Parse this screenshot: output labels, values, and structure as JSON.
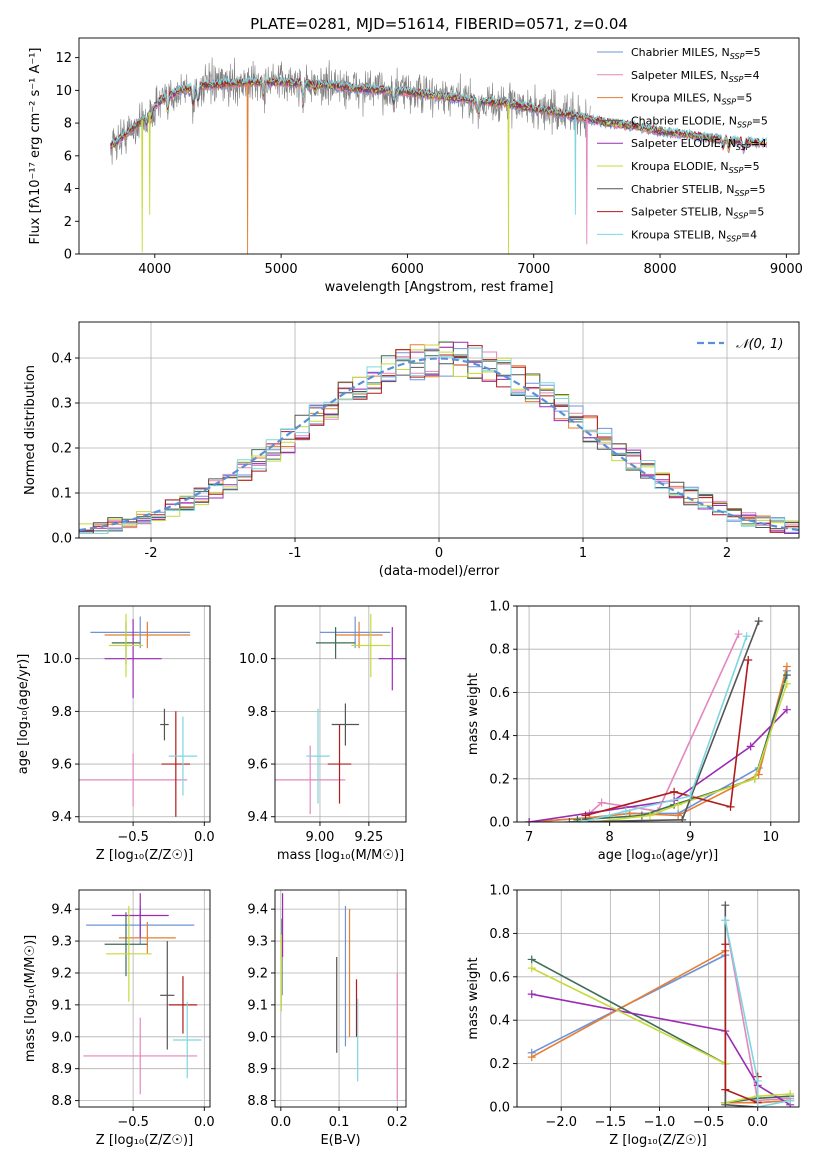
{
  "figure_title": "PLATE=0281, MJD=51614, FIBERID=0571, z=0.04",
  "colors": {
    "chabrier_miles": "#6f93d8",
    "salpeter_miles": "#e387be",
    "kroupa_miles": "#e57e32",
    "chabrier_elodie": "#3c6e55",
    "salpeter_elodie": "#9b2bb5",
    "kroupa_elodie": "#c6da3c",
    "chabrier_stelib": "#555555",
    "salpeter_stelib": "#b01b1b",
    "kroupa_stelib": "#7ed6e0",
    "data": "#7f7f7f",
    "normal": "#5b8fd6",
    "grid": "#b0b0b0"
  },
  "legend_entries": [
    {
      "key": "chabrier_miles",
      "label": "Chabrier MILES, N",
      "sub": "SSP",
      "suffix": "=5"
    },
    {
      "key": "salpeter_miles",
      "label": "Salpeter MILES, N",
      "sub": "SSP",
      "suffix": "=4"
    },
    {
      "key": "kroupa_miles",
      "label": "Kroupa MILES, N",
      "sub": "SSP",
      "suffix": "=5"
    },
    {
      "key": "chabrier_elodie",
      "label": "Chabrier ELODIE, N",
      "sub": "SSP",
      "suffix": "=5"
    },
    {
      "key": "salpeter_elodie",
      "label": "Salpeter ELODIE, N",
      "sub": "SSP",
      "suffix": "=4"
    },
    {
      "key": "kroupa_elodie",
      "label": "Kroupa ELODIE, N",
      "sub": "SSP",
      "suffix": "=5"
    },
    {
      "key": "chabrier_stelib",
      "label": "Chabrier STELIB, N",
      "sub": "SSP",
      "suffix": "=5"
    },
    {
      "key": "salpeter_stelib",
      "label": "Salpeter STELIB, N",
      "sub": "SSP",
      "suffix": "=5"
    },
    {
      "key": "kroupa_stelib",
      "label": "Kroupa STELIB, N",
      "sub": "SSP",
      "suffix": "=4"
    }
  ],
  "chart_data": [
    {
      "id": "spectrum",
      "type": "line",
      "xlabel": "wavelength [Angstrom, rest frame]",
      "ylabel": "Flux [fλ10⁻¹⁷ erg cm⁻² s⁻¹ A⁻¹]",
      "xlim": [
        3400,
        9100
      ],
      "ylim": [
        0,
        13.2
      ],
      "xticks": [
        4000,
        5000,
        6000,
        7000,
        8000,
        9000
      ],
      "yticks": [
        0,
        2,
        4,
        6,
        8,
        10,
        12
      ],
      "continuum": [
        [
          3650,
          6.6
        ],
        [
          3750,
          7.2
        ],
        [
          3850,
          7.8
        ],
        [
          3950,
          8.6
        ],
        [
          4050,
          9.4
        ],
        [
          4200,
          10.0
        ],
        [
          4400,
          10.3
        ],
        [
          4600,
          10.4
        ],
        [
          4800,
          10.5
        ],
        [
          5000,
          10.5
        ],
        [
          5200,
          10.4
        ],
        [
          5400,
          10.3
        ],
        [
          5600,
          10.1
        ],
        [
          5800,
          10.0
        ],
        [
          6000,
          9.9
        ],
        [
          6200,
          9.7
        ],
        [
          6400,
          9.5
        ],
        [
          6600,
          9.3
        ],
        [
          6800,
          9.2
        ],
        [
          7000,
          8.9
        ],
        [
          7200,
          8.6
        ],
        [
          7400,
          8.3
        ],
        [
          7600,
          8.0
        ],
        [
          7800,
          7.8
        ],
        [
          8000,
          7.5
        ],
        [
          8200,
          7.3
        ],
        [
          8400,
          7.1
        ],
        [
          8600,
          6.9
        ],
        [
          8800,
          6.8
        ]
      ],
      "absorption_lines": [
        [
          3934,
          0.6
        ],
        [
          3969,
          0.7
        ],
        [
          4102,
          0.9
        ],
        [
          4304,
          1.2
        ],
        [
          4341,
          0.9
        ],
        [
          4861,
          0.9
        ],
        [
          5175,
          1.0
        ],
        [
          5269,
          0.5
        ],
        [
          5890,
          0.8
        ],
        [
          6563,
          0.9
        ],
        [
          8498,
          0.5
        ],
        [
          8542,
          0.6
        ],
        [
          8662,
          0.5
        ]
      ],
      "glitches": [
        {
          "x": 3900,
          "y": 0.1,
          "series": "kroupa_elodie"
        },
        {
          "x": 3960,
          "y": 2.4,
          "series": "kroupa_elodie"
        },
        {
          "x": 4735,
          "y": 0,
          "series": "kroupa_miles"
        },
        {
          "x": 6800,
          "y": 0,
          "series": "kroupa_elodie"
        },
        {
          "x": 7330,
          "y": 2.4,
          "series": "kroupa_stelib"
        },
        {
          "x": 7420,
          "y": 0.6,
          "series": "salpeter_miles"
        }
      ],
      "data_range": [
        3650,
        7450
      ],
      "models_range": [
        3650,
        8850
      ],
      "noise_amplitude": 1.2
    },
    {
      "id": "residuals",
      "type": "step-histogram",
      "xlabel": "(data-model)/error",
      "ylabel": "Normed distribution",
      "xlim": [
        -2.5,
        2.5
      ],
      "ylim": [
        0,
        0.48
      ],
      "xticks": [
        -2,
        -1,
        0,
        1,
        2
      ],
      "yticks": [
        0.0,
        0.1,
        0.2,
        0.3,
        0.4
      ],
      "bin_width": 0.1,
      "bin_start": -2.5,
      "normal_label": "𝒩(0, 1)",
      "perturbation_amplitude": 0.04
    },
    {
      "id": "age_vs_Z",
      "type": "errorbar",
      "xlabel": "Z [log₁₀(Z/Z☉)]",
      "ylabel": "age  [log₁₀(age/yr)]",
      "xlim": [
        -0.88,
        0.04
      ],
      "ylim": [
        9.38,
        10.2
      ],
      "xticks": [
        -0.5,
        0.0
      ],
      "xticklabels": [
        "−0.5",
        "0.0"
      ],
      "yticks": [
        9.4,
        9.6,
        9.8,
        10.0
      ],
      "yticklabels": [
        "9.4",
        "9.6",
        "9.8",
        "10.0"
      ],
      "points": [
        {
          "s": "chabrier_miles",
          "x": -0.45,
          "xe": 0.35,
          "y": 10.1,
          "ye": 0.06
        },
        {
          "s": "salpeter_miles",
          "x": -0.5,
          "xe": 0.38,
          "y": 9.54,
          "ye": 0.1
        },
        {
          "s": "kroupa_miles",
          "x": -0.4,
          "xe": 0.3,
          "y": 10.09,
          "ye": 0.05
        },
        {
          "s": "chabrier_elodie",
          "x": -0.55,
          "xe": 0.1,
          "y": 10.06,
          "ye": 0.08
        },
        {
          "s": "salpeter_elodie",
          "x": -0.5,
          "xe": 0.2,
          "y": 10.0,
          "ye": 0.15
        },
        {
          "s": "kroupa_elodie",
          "x": -0.55,
          "xe": 0.12,
          "y": 10.05,
          "ye": 0.12
        },
        {
          "s": "chabrier_stelib",
          "x": -0.28,
          "xe": 0.03,
          "y": 9.75,
          "ye": 0.06
        },
        {
          "s": "salpeter_stelib",
          "x": -0.2,
          "xe": 0.1,
          "y": 9.6,
          "ye": 0.2
        },
        {
          "s": "kroupa_stelib",
          "x": -0.15,
          "xe": 0.1,
          "y": 9.63,
          "ye": 0.15
        }
      ]
    },
    {
      "id": "age_vs_mass",
      "type": "errorbar",
      "xlabel": "mass [log₁₀(M/M☉)]",
      "ylabel": "",
      "xlim": [
        8.77,
        9.44
      ],
      "ylim": [
        9.38,
        10.2
      ],
      "xticks": [
        9.0,
        9.25
      ],
      "xticklabels": [
        "9.00",
        "9.25"
      ],
      "yticks": [
        9.4,
        9.6,
        9.8,
        10.0
      ],
      "yticklabels": [
        "9.4",
        "9.6",
        "9.8",
        "10.0"
      ],
      "points": [
        {
          "s": "chabrier_miles",
          "x": 9.18,
          "xe": 0.18,
          "y": 10.1,
          "ye": 0.06
        },
        {
          "s": "salpeter_miles",
          "x": 8.95,
          "xe": 0.18,
          "y": 9.54,
          "ye": 0.13
        },
        {
          "s": "kroupa_miles",
          "x": 9.2,
          "xe": 0.12,
          "y": 10.09,
          "ye": 0.05
        },
        {
          "s": "chabrier_elodie",
          "x": 9.08,
          "xe": 0.1,
          "y": 10.06,
          "ye": 0.06
        },
        {
          "s": "salpeter_elodie",
          "x": 9.37,
          "xe": 0.07,
          "y": 10.0,
          "ye": 0.12
        },
        {
          "s": "kroupa_elodie",
          "x": 9.26,
          "xe": 0.1,
          "y": 10.05,
          "ye": 0.12
        },
        {
          "s": "chabrier_stelib",
          "x": 9.13,
          "xe": 0.07,
          "y": 9.75,
          "ye": 0.08
        },
        {
          "s": "salpeter_stelib",
          "x": 9.1,
          "xe": 0.06,
          "y": 9.6,
          "ye": 0.15
        },
        {
          "s": "kroupa_stelib",
          "x": 8.99,
          "xe": 0.06,
          "y": 9.63,
          "ye": 0.18
        }
      ]
    },
    {
      "id": "mass_weight_vs_age",
      "type": "line",
      "xlabel": "age  [log₁₀(age/yr)]",
      "ylabel": "mass weight",
      "xlim": [
        6.85,
        10.35
      ],
      "ylim": [
        0,
        1.0
      ],
      "xticks": [
        7,
        8,
        9,
        10
      ],
      "yticks": [
        0.0,
        0.2,
        0.4,
        0.6,
        0.8,
        1.0
      ],
      "series": [
        {
          "s": "chabrier_miles",
          "x": [
            7.0,
            7.75,
            8.25,
            8.85,
            9.85,
            10.2
          ],
          "y": [
            0.0,
            0.02,
            0.04,
            0.04,
            0.25,
            0.7
          ]
        },
        {
          "s": "salpeter_miles",
          "x": [
            7.75,
            7.9,
            8.6,
            9.6
          ],
          "y": [
            0.04,
            0.09,
            0.05,
            0.87
          ]
        },
        {
          "s": "kroupa_miles",
          "x": [
            7.0,
            7.75,
            8.25,
            8.85,
            9.85,
            10.2
          ],
          "y": [
            0.0,
            0.02,
            0.04,
            0.03,
            0.22,
            0.72
          ]
        },
        {
          "s": "chabrier_elodie",
          "x": [
            7.6,
            8.4,
            8.8,
            9.8,
            10.2
          ],
          "y": [
            0.01,
            0.03,
            0.08,
            0.2,
            0.68
          ]
        },
        {
          "s": "salpeter_elodie",
          "x": [
            7.0,
            8.8,
            9.75,
            10.2
          ],
          "y": [
            0.0,
            0.1,
            0.35,
            0.52
          ]
        },
        {
          "s": "kroupa_elodie",
          "x": [
            7.8,
            8.5,
            8.85,
            9.8,
            10.2
          ],
          "y": [
            0.0,
            0.03,
            0.08,
            0.2,
            0.64
          ]
        },
        {
          "s": "chabrier_stelib",
          "x": [
            7.5,
            8.9,
            9.85
          ],
          "y": [
            0.0,
            0.01,
            0.93
          ]
        },
        {
          "s": "salpeter_stelib",
          "x": [
            7.7,
            8.8,
            9.5,
            9.72
          ],
          "y": [
            0.03,
            0.14,
            0.07,
            0.75
          ]
        },
        {
          "s": "kroupa_stelib",
          "x": [
            7.65,
            8.2,
            9.0,
            9.7
          ],
          "y": [
            0.0,
            0.05,
            0.12,
            0.86
          ]
        }
      ]
    },
    {
      "id": "mass_vs_Z",
      "type": "errorbar",
      "xlabel": "Z [log₁₀(Z/Z☉)]",
      "ylabel": "mass [log₁₀(M/M☉)]",
      "xlim": [
        -0.88,
        0.04
      ],
      "ylim": [
        8.78,
        9.46
      ],
      "xticks": [
        -0.5,
        0.0
      ],
      "xticklabels": [
        "−0.5",
        "0.0"
      ],
      "yticks": [
        8.8,
        8.9,
        9.0,
        9.1,
        9.2,
        9.3,
        9.4
      ],
      "yticklabels": [
        "8.8",
        "8.9",
        "9.0",
        "9.1",
        "9.2",
        "9.3",
        "9.4"
      ],
      "points": [
        {
          "s": "chabrier_miles",
          "x": -0.45,
          "xe": 0.38,
          "y": 9.35,
          "ye": 0.06
        },
        {
          "s": "salpeter_miles",
          "x": -0.45,
          "xe": 0.4,
          "y": 8.94,
          "ye": 0.12
        },
        {
          "s": "kroupa_miles",
          "x": -0.4,
          "xe": 0.2,
          "y": 9.31,
          "ye": 0.05
        },
        {
          "s": "chabrier_elodie",
          "x": -0.55,
          "xe": 0.15,
          "y": 9.29,
          "ye": 0.1
        },
        {
          "s": "salpeter_elodie",
          "x": -0.45,
          "xe": 0.2,
          "y": 9.38,
          "ye": 0.07
        },
        {
          "s": "kroupa_elodie",
          "x": -0.53,
          "xe": 0.16,
          "y": 9.26,
          "ye": 0.15
        },
        {
          "s": "chabrier_stelib",
          "x": -0.26,
          "xe": 0.05,
          "y": 9.13,
          "ye": 0.17
        },
        {
          "s": "salpeter_stelib",
          "x": -0.15,
          "xe": 0.1,
          "y": 9.1,
          "ye": 0.09
        },
        {
          "s": "kroupa_stelib",
          "x": -0.12,
          "xe": 0.1,
          "y": 8.99,
          "ye": 0.12
        }
      ]
    },
    {
      "id": "mass_vs_EBV",
      "type": "errorbar",
      "xlabel": "E(B-V)",
      "ylabel": "",
      "xlim": [
        -0.01,
        0.215
      ],
      "ylim": [
        8.78,
        9.46
      ],
      "xticks": [
        0.0,
        0.1,
        0.2
      ],
      "xticklabels": [
        "0.0",
        "0.1",
        "0.2"
      ],
      "yticks": [
        8.8,
        8.9,
        9.0,
        9.1,
        9.2,
        9.3,
        9.4
      ],
      "yticklabels": [
        "8.8",
        "8.9",
        "9.0",
        "9.1",
        "9.2",
        "9.3",
        "9.4"
      ],
      "points": [
        {
          "s": "chabrier_miles",
          "x": 0.111,
          "xe": 0,
          "y": 9.19,
          "ye": 0.22
        },
        {
          "s": "salpeter_miles",
          "x": 0.2,
          "xe": 0,
          "y": 9.0,
          "ye": 0.2
        },
        {
          "s": "kroupa_miles",
          "x": 0.118,
          "xe": 0,
          "y": 9.2,
          "ye": 0.2
        },
        {
          "s": "chabrier_elodie",
          "x": 0.002,
          "xe": 0,
          "y": 9.25,
          "ye": 0.12
        },
        {
          "s": "salpeter_elodie",
          "x": 0.003,
          "xe": 0,
          "y": 9.35,
          "ye": 0.1
        },
        {
          "s": "kroupa_elodie",
          "x": 0.001,
          "xe": 0,
          "y": 9.2,
          "ye": 0.12
        },
        {
          "s": "chabrier_stelib",
          "x": 0.096,
          "xe": 0,
          "y": 9.1,
          "ye": 0.15
        },
        {
          "s": "salpeter_stelib",
          "x": 0.13,
          "xe": 0,
          "y": 9.09,
          "ye": 0.09
        },
        {
          "s": "kroupa_stelib",
          "x": 0.132,
          "xe": 0,
          "y": 8.99,
          "ye": 0.13
        }
      ]
    },
    {
      "id": "mass_weight_vs_Z",
      "type": "line",
      "xlabel": "Z [log₁₀(Z/Z☉)]",
      "ylabel": "mass weight",
      "xlim": [
        -2.45,
        0.42
      ],
      "ylim": [
        0,
        1.0
      ],
      "xticks": [
        -2.0,
        -1.5,
        -1.0,
        -0.5,
        0.0
      ],
      "xticklabels": [
        "−2.0",
        "−1.5",
        "−1.0",
        "−0.5",
        "0.0"
      ],
      "yticks": [
        0.0,
        0.2,
        0.4,
        0.6,
        0.8,
        1.0
      ],
      "series": [
        {
          "s": "chabrier_miles",
          "x": [
            -2.3,
            -0.33,
            -0.33,
            0.0,
            0.33
          ],
          "y": [
            0.25,
            0.7,
            0.02,
            0.02,
            0.03
          ]
        },
        {
          "s": "salpeter_miles",
          "x": [
            -0.33,
            0.0,
            0.33
          ],
          "y": [
            0.86,
            0.03,
            0.04
          ]
        },
        {
          "s": "kroupa_miles",
          "x": [
            -2.3,
            -0.33,
            -0.33,
            0.0,
            0.33
          ],
          "y": [
            0.23,
            0.72,
            0.02,
            0.02,
            0.03
          ]
        },
        {
          "s": "chabrier_elodie",
          "x": [
            -2.3,
            -0.33,
            -0.33,
            0.0,
            0.33
          ],
          "y": [
            0.68,
            0.2,
            0.02,
            0.04,
            0.05
          ]
        },
        {
          "s": "salpeter_elodie",
          "x": [
            -2.3,
            -0.33,
            0.0,
            0.33
          ],
          "y": [
            0.52,
            0.35,
            0.1,
            0.01
          ]
        },
        {
          "s": "kroupa_elodie",
          "x": [
            -2.3,
            -0.33,
            -0.33,
            0.0,
            0.33
          ],
          "y": [
            0.64,
            0.2,
            0.02,
            0.05,
            0.06
          ]
        },
        {
          "s": "chabrier_stelib",
          "x": [
            -0.33,
            -0.33,
            0.0
          ],
          "y": [
            0.93,
            0.01,
            0.0
          ]
        },
        {
          "s": "salpeter_stelib",
          "x": [
            -0.33,
            -0.33,
            0.0,
            0.0
          ],
          "y": [
            0.75,
            0.08,
            0.02,
            0.14
          ]
        },
        {
          "s": "kroupa_stelib",
          "x": [
            -0.33,
            0.0,
            0.0,
            0.33
          ],
          "y": [
            0.86,
            0.12,
            0.0,
            0.03
          ]
        }
      ]
    }
  ]
}
